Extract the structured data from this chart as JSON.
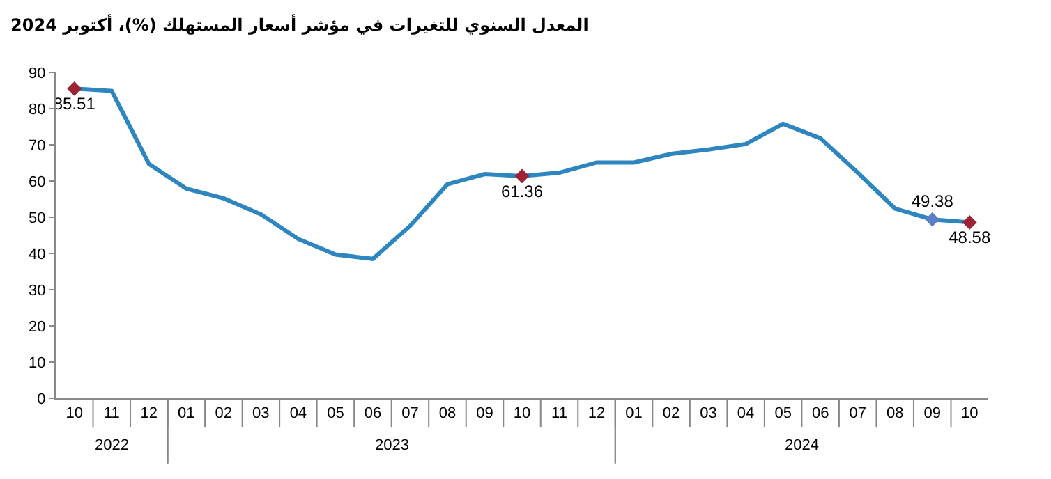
{
  "chart_data": {
    "type": "line",
    "title": "المعدل السنوي للتغيرات في مؤشر أسعار المستهلك (%)، أكتوبر 2024",
    "categories": [
      [
        "2022",
        "10"
      ],
      [
        null,
        "11"
      ],
      [
        null,
        "12"
      ],
      [
        "2023",
        "01"
      ],
      [
        null,
        "02"
      ],
      [
        null,
        "03"
      ],
      [
        null,
        "04"
      ],
      [
        null,
        "05"
      ],
      [
        null,
        "06"
      ],
      [
        null,
        "07"
      ],
      [
        null,
        "08"
      ],
      [
        null,
        "09"
      ],
      [
        null,
        "10"
      ],
      [
        null,
        "11"
      ],
      [
        null,
        "12"
      ],
      [
        "2024",
        "01"
      ],
      [
        null,
        "02"
      ],
      [
        null,
        "03"
      ],
      [
        null,
        "04"
      ],
      [
        null,
        "05"
      ],
      [
        null,
        "06"
      ],
      [
        null,
        "07"
      ],
      [
        null,
        "08"
      ],
      [
        null,
        "09"
      ],
      [
        null,
        "10"
      ]
    ],
    "series": [
      {
        "color": "#2e86c1",
        "marker": "none",
        "values": [
          85.51,
          84.9,
          64.7,
          57.9,
          55.2,
          50.8,
          44.0,
          39.7,
          38.5,
          47.6,
          59.1,
          61.9,
          61.36,
          62.3,
          65.1,
          65.1,
          67.5,
          68.7,
          70.2,
          75.8,
          71.8,
          62.3,
          52.4,
          49.38,
          48.58
        ]
      },
      {
        "type": "scatter",
        "marker": "diamond",
        "colors": [
          "#9b2335",
          null,
          null,
          null,
          null,
          null,
          null,
          null,
          null,
          null,
          null,
          null,
          "#9b2335",
          null,
          null,
          null,
          null,
          null,
          null,
          null,
          null,
          null,
          null,
          "#5b7fc7",
          "#9b2335"
        ],
        "values": [
          85.51,
          null,
          null,
          null,
          null,
          null,
          null,
          null,
          null,
          null,
          null,
          null,
          61.36,
          null,
          null,
          null,
          null,
          null,
          null,
          null,
          null,
          null,
          null,
          49.38,
          48.58
        ],
        "value_labels": [
          "85.51",
          null,
          null,
          null,
          null,
          null,
          null,
          null,
          null,
          null,
          null,
          null,
          "61.36",
          null,
          null,
          null,
          null,
          null,
          null,
          null,
          null,
          null,
          null,
          "49.38",
          "48.58"
        ]
      }
    ],
    "ylim": [
      0,
      90
    ],
    "yticks": [
      0,
      10,
      20,
      30,
      40,
      50,
      60,
      70,
      80,
      90
    ]
  }
}
